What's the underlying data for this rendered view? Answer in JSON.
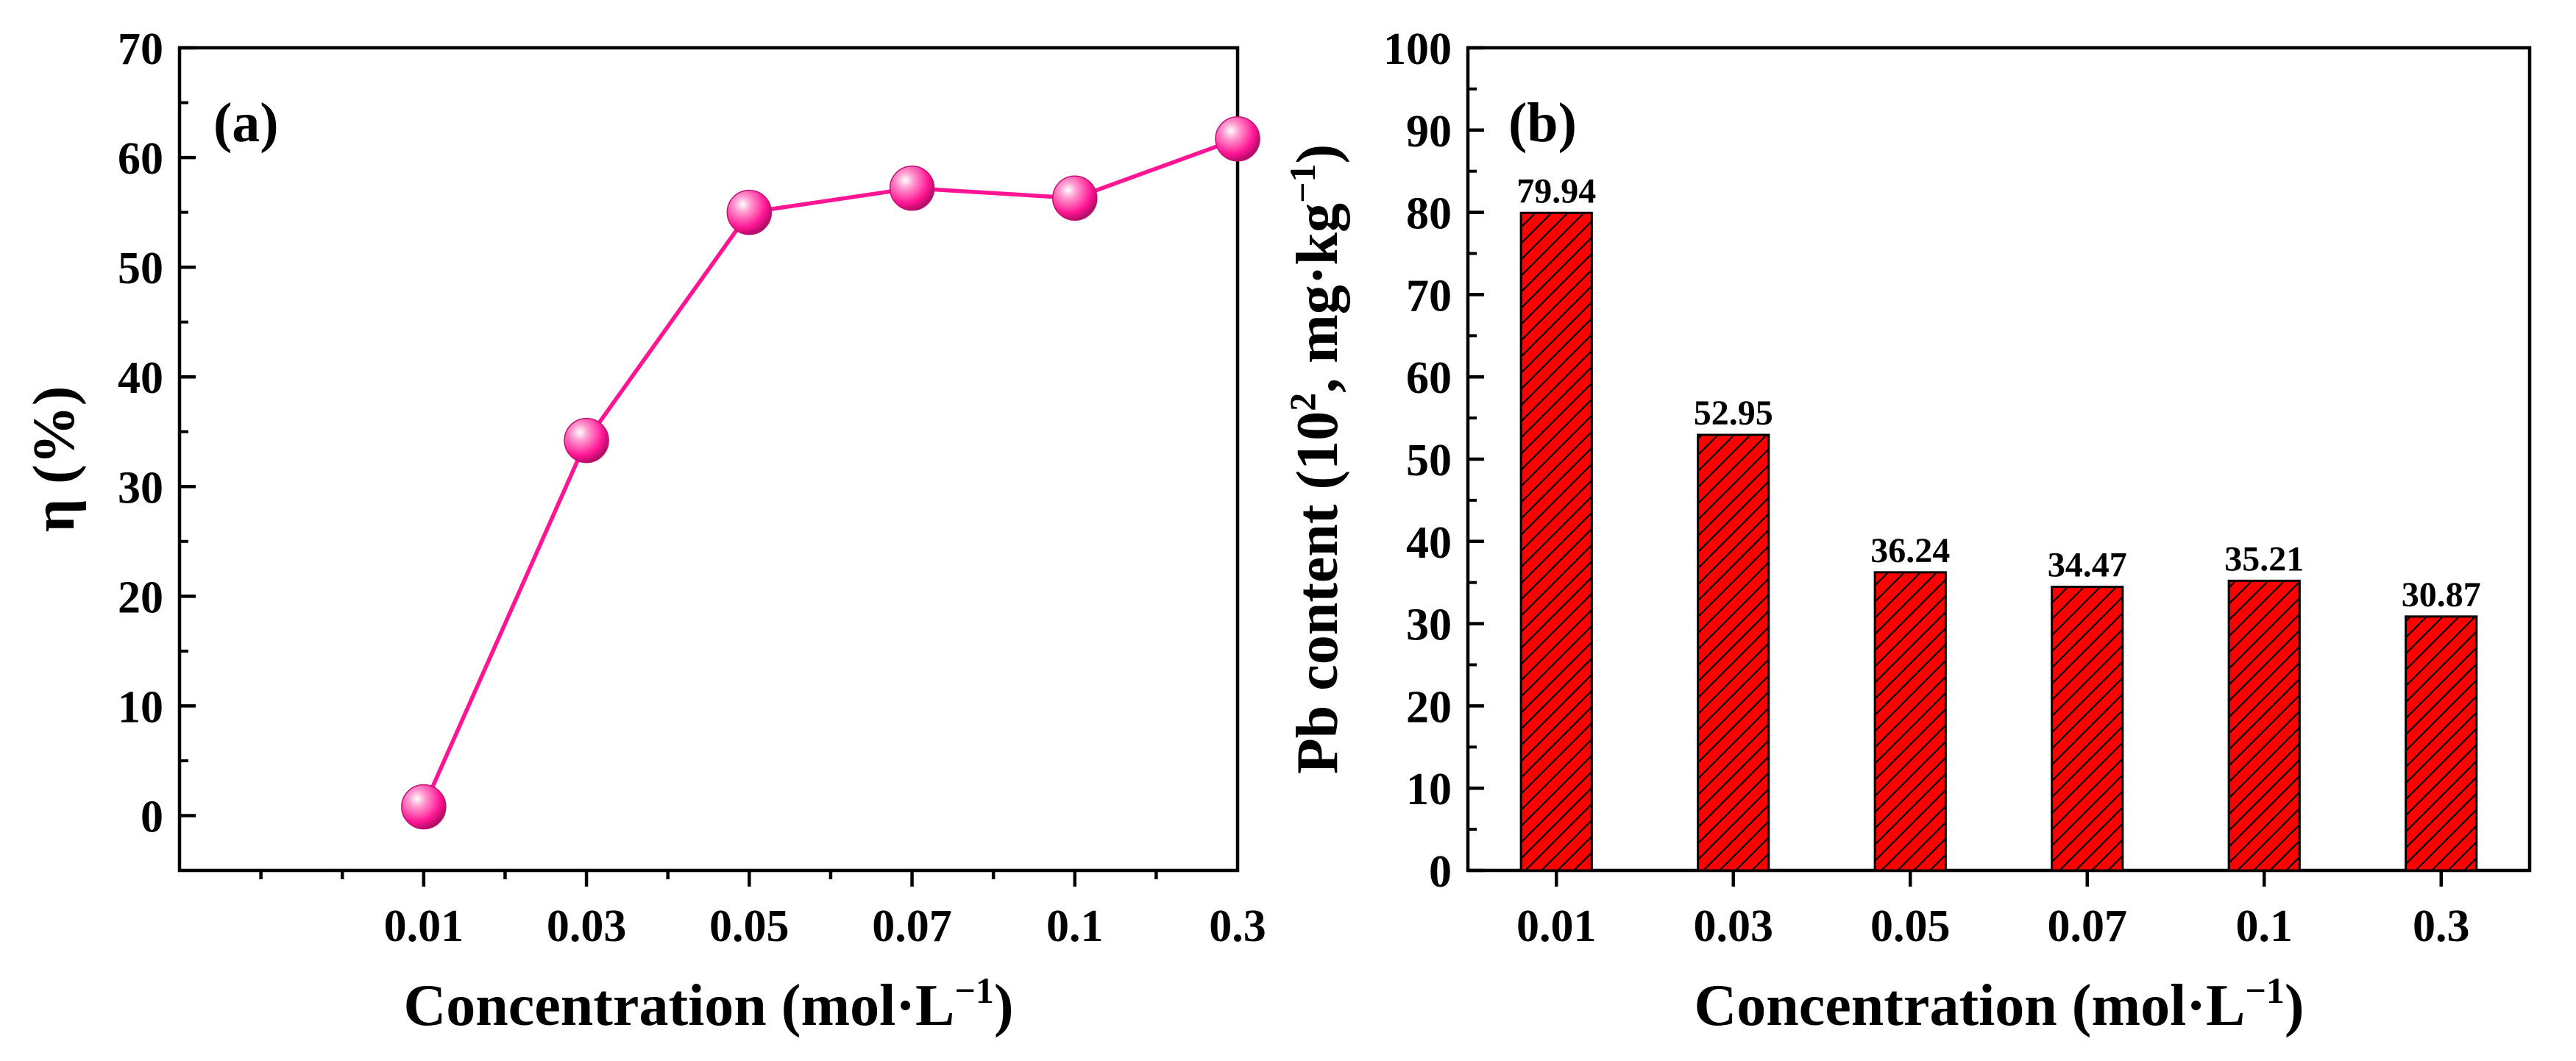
{
  "chart_data": [
    {
      "type": "line",
      "panel_label": "(a)",
      "categories": [
        "0.01",
        "0.03",
        "0.05",
        "0.07",
        "0.1",
        "0.3"
      ],
      "series": [
        {
          "name": "η",
          "values": [
            0.8,
            34.2,
            55.0,
            57.2,
            56.3,
            61.7
          ],
          "color": "#ff1493"
        }
      ],
      "xlabel": "Concentration (mol·L",
      "xlabel_sup": "−1",
      "xlabel_end": ")",
      "ylabel": "η (%)",
      "ylim": [
        -5,
        70
      ],
      "yticks": [
        0,
        10,
        20,
        30,
        40,
        50,
        60,
        70
      ],
      "grid": false
    },
    {
      "type": "bar",
      "panel_label": "(b)",
      "categories": [
        "0.01",
        "0.03",
        "0.05",
        "0.07",
        "0.1",
        "0.3"
      ],
      "values": [
        79.94,
        52.95,
        36.24,
        34.47,
        35.21,
        30.87
      ],
      "data_labels": [
        "79.94",
        "52.95",
        "36.24",
        "34.47",
        "35.21",
        "30.87"
      ],
      "xlabel": "Concentration (mol·L",
      "xlabel_sup": "−1",
      "xlabel_end": ")",
      "ylabel_parts": [
        "Pb content (10",
        "2",
        ", mg·kg",
        "−1",
        ")"
      ],
      "ylim": [
        0,
        100
      ],
      "yticks": [
        0,
        10,
        20,
        30,
        40,
        50,
        60,
        70,
        80,
        90,
        100
      ],
      "bar_color": "#ff0000",
      "grid": false
    }
  ]
}
